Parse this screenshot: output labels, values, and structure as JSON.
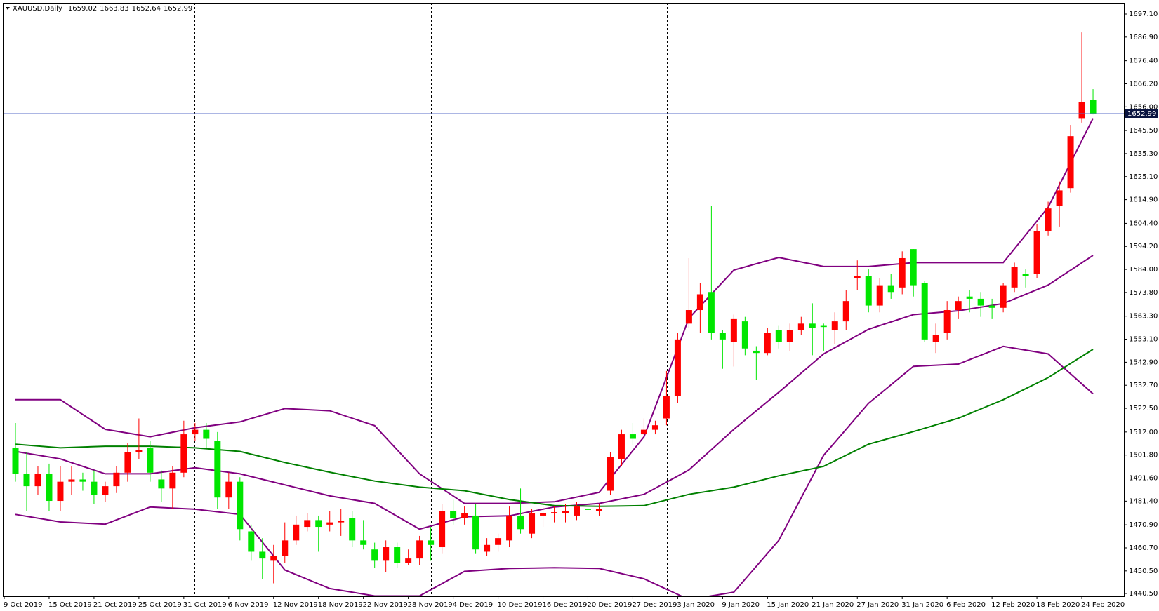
{
  "chart_data": {
    "type": "candlestick",
    "symbol": "XAUUSD,Daily",
    "categories": [
      "9 Oct 2019",
      null,
      null,
      null,
      "15 Oct 2019",
      null,
      null,
      null,
      "21 Oct 2019",
      null,
      null,
      null,
      "25 Oct 2019",
      null,
      null,
      null,
      "31 Oct 2019",
      null,
      null,
      null,
      "6 Nov 2019",
      null,
      null,
      null,
      "12 Nov 2019",
      null,
      null,
      null,
      "18 Nov 2019",
      null,
      null,
      null,
      "22 Nov 2019",
      null,
      null,
      null,
      "28 Nov 2019",
      null,
      null,
      null,
      "4 Dec 2019",
      null,
      null,
      null,
      "10 Dec 2019",
      null,
      null,
      null,
      "16 Dec 2019",
      null,
      null,
      null,
      "20 Dec 2019",
      null,
      null,
      null,
      "27 Dec 2019",
      null,
      null,
      null,
      "3 Jan 2020",
      null,
      null,
      null,
      "9 Jan 2020",
      null,
      null,
      null,
      "15 Jan 2020",
      null,
      null,
      null,
      "21 Jan 2020",
      null,
      null,
      null,
      "27 Jan 2020",
      null,
      null,
      null,
      "31 Jan 2020",
      null,
      null,
      null,
      "6 Feb 2020",
      null,
      null,
      null,
      "12 Feb 2020",
      null,
      null,
      null,
      "18 Feb 2020",
      null,
      null,
      null,
      "24 Feb 2020"
    ],
    "open": [
      1505,
      1493.5,
      1488,
      1493.5,
      1481.5,
      1490,
      1491,
      1490,
      1484,
      1488,
      1494,
      1503,
      1505,
      1491,
      1487,
      1494,
      1511,
      1513,
      1508,
      1483,
      1490,
      1468,
      1459,
      1455,
      1457,
      1464,
      1470,
      1473,
      1471,
      1472,
      1474,
      1464,
      1460,
      1455,
      1461,
      1454,
      1456,
      1464,
      1461,
      1477,
      1474,
      1475,
      1459,
      1462,
      1464,
      1475,
      1467,
      1475,
      1476,
      1476,
      1475,
      1478,
      1477,
      1486,
      1500,
      1511,
      1511,
      1513,
      1518,
      1528,
      1560,
      1566,
      1574,
      1556,
      1552,
      1561,
      1548,
      1547,
      1557,
      1552,
      1557,
      1560,
      1559,
      1557,
      1561,
      1580,
      1581,
      1568,
      1577,
      1576,
      1593,
      1578,
      1552,
      1556,
      1566,
      1572,
      1571,
      1568,
      1567,
      1576,
      1582,
      1582,
      1601,
      1612,
      1620,
      1651,
      1659.02
    ],
    "high": [
      1516,
      1503,
      1497,
      1498,
      1497,
      1497,
      1494,
      1495,
      1490,
      1497,
      1507,
      1518,
      1508,
      1495,
      1497,
      1517,
      1516,
      1516,
      1512,
      1494,
      1492,
      1471,
      1465,
      1462,
      1472,
      1475,
      1476,
      1475,
      1477,
      1478,
      1477,
      1473,
      1463,
      1464,
      1463,
      1460,
      1466,
      1470,
      1480,
      1482,
      1479,
      1480,
      1465,
      1467,
      1479,
      1487,
      1478,
      1479,
      1479,
      1480,
      1481,
      1481,
      1480,
      1503,
      1513,
      1516,
      1518,
      1517,
      1539,
      1556,
      1589,
      1578,
      1612,
      1557,
      1564,
      1563,
      1550,
      1558,
      1559,
      1560,
      1563,
      1569,
      1560,
      1565,
      1575,
      1588,
      1584,
      1580,
      1582,
      1592,
      1593,
      1579,
      1560,
      1570,
      1572,
      1575,
      1574,
      1571,
      1578,
      1587,
      1584,
      1604,
      1614,
      1623,
      1648,
      1689,
      1663.83
    ],
    "low": [
      1490,
      1477,
      1484,
      1477,
      1477,
      1484,
      1486,
      1480,
      1481,
      1485,
      1490,
      1500,
      1490,
      1481,
      1478,
      1492,
      1508,
      1505,
      1478,
      1478,
      1464,
      1455,
      1447,
      1445,
      1454,
      1462,
      1468,
      1459,
      1468,
      1466,
      1461,
      1460,
      1452,
      1450,
      1452,
      1453,
      1453,
      1455,
      1458,
      1471,
      1471,
      1458,
      1457,
      1459,
      1461,
      1467,
      1465,
      1470,
      1472,
      1472,
      1473,
      1474,
      1475,
      1484,
      1497,
      1506,
      1510,
      1511,
      1515,
      1525,
      1558,
      1556,
      1553,
      1540,
      1541,
      1546,
      1535,
      1546,
      1549,
      1548,
      1555,
      1546,
      1548,
      1551,
      1557,
      1575,
      1565,
      1565,
      1571,
      1573,
      1572,
      1552,
      1547,
      1553,
      1562,
      1565,
      1563,
      1562,
      1565,
      1574,
      1576,
      1580,
      1599,
      1603,
      1618,
      1649,
      1652.64
    ],
    "close": [
      1493.5,
      1488,
      1493.5,
      1481.5,
      1490,
      1491,
      1490,
      1484,
      1488,
      1494,
      1503,
      1504,
      1494,
      1487,
      1494,
      1511,
      1513,
      1509,
      1483,
      1490,
      1469,
      1459,
      1456,
      1457,
      1464,
      1471,
      1473,
      1470,
      1472,
      1472.5,
      1464,
      1462,
      1455,
      1461,
      1454,
      1456,
      1464,
      1462,
      1477,
      1474,
      1476,
      1460,
      1462,
      1465,
      1475,
      1469,
      1476,
      1476,
      1476.5,
      1477,
      1479,
      1477.5,
      1478,
      1501,
      1511,
      1509,
      1513,
      1515,
      1528,
      1553,
      1566,
      1573,
      1556,
      1553,
      1562,
      1549,
      1547,
      1556,
      1552,
      1557,
      1560,
      1558,
      1558.5,
      1561,
      1570,
      1581,
      1568,
      1577,
      1574,
      1589,
      1577,
      1553,
      1555,
      1566,
      1570,
      1571,
      1568,
      1567,
      1577,
      1585,
      1581,
      1601,
      1611,
      1619,
      1643,
      1658,
      1652.99
    ],
    "up_color": "#ff0000",
    "down_color": "#00e600",
    "lines": [
      {
        "color": "#800080",
        "values": [
          1526.3,
          1526.3,
          1513.2,
          1509.9,
          1513.9,
          1516.5,
          1522.4,
          1521.4,
          1514.8,
          1493.5,
          1480.4,
          1480.4,
          1481.1,
          1485.3,
          1509.9,
          1562.4,
          1583.7,
          1589.3,
          1585.3,
          1585.3,
          1587.0,
          1587.0,
          1587.0,
          1611.5,
          1650.9
        ]
      },
      {
        "color": "#800080",
        "values": [
          1503.4,
          1500.1,
          1493.5,
          1493.5,
          1496.2,
          1493.5,
          1488.6,
          1483.7,
          1480.4,
          1469.0,
          1474.5,
          1474.9,
          1478.8,
          1480.4,
          1484.4,
          1495.2,
          1513.2,
          1529.6,
          1546.6,
          1557.5,
          1564.0,
          1565.7,
          1568.9,
          1577.1,
          1590.2
        ]
      },
      {
        "color": "#800080",
        "values": [
          1475.5,
          1472.2,
          1471.2,
          1478.8,
          1477.8,
          1475.5,
          1450.9,
          1442.7,
          1439.4,
          1439.4,
          1450.3,
          1451.6,
          1451.9,
          1451.6,
          1447.0,
          1437.8,
          1441.1,
          1464.0,
          1501.7,
          1524.7,
          1541.1,
          1542.1,
          1549.9,
          1546.6,
          1528.9
        ]
      },
      {
        "color": "#008000",
        "values": [
          1506.6,
          1505.0,
          1505.7,
          1505.7,
          1505.0,
          1503.4,
          1498.5,
          1494.2,
          1490.3,
          1487.6,
          1486.0,
          1482.1,
          1479.4,
          1479.1,
          1479.4,
          1484.4,
          1487.6,
          1492.6,
          1496.8,
          1506.6,
          1512.2,
          1518.1,
          1526.3,
          1536.1,
          1548.6
        ]
      }
    ],
    "price_line_color": "#5a6ec8",
    "ylim": [
      1439.26,
      1702.07
    ],
    "yticks": [
      {
        "value": 1697.1,
        "label": "1697.10"
      },
      {
        "value": 1686.9,
        "label": "1686.90"
      },
      {
        "value": 1676.4,
        "label": "1676.40"
      },
      {
        "value": 1666.2,
        "label": "1666.20"
      },
      {
        "value": 1656.0,
        "label": "1656.00"
      },
      {
        "value": 1645.5,
        "label": "1645.50"
      },
      {
        "value": 1635.3,
        "label": "1635.30"
      },
      {
        "value": 1625.1,
        "label": "1625.10"
      },
      {
        "value": 1614.9,
        "label": "1614.90"
      },
      {
        "value": 1604.4,
        "label": "1604.40"
      },
      {
        "value": 1594.2,
        "label": "1594.20"
      },
      {
        "value": 1584.0,
        "label": "1584.00"
      },
      {
        "value": 1573.8,
        "label": "1573.80"
      },
      {
        "value": 1563.3,
        "label": "1563.30"
      },
      {
        "value": 1553.1,
        "label": "1553.10"
      },
      {
        "value": 1542.9,
        "label": "1542.90"
      },
      {
        "value": 1532.7,
        "label": "1532.70"
      },
      {
        "value": 1522.5,
        "label": "1522.50"
      },
      {
        "value": 1512.0,
        "label": "1512.00"
      },
      {
        "value": 1501.8,
        "label": "1501.80"
      },
      {
        "value": 1491.6,
        "label": "1491.60"
      },
      {
        "value": 1481.4,
        "label": "1481.40"
      },
      {
        "value": 1470.9,
        "label": "1470.90"
      },
      {
        "value": 1460.7,
        "label": "1460.70"
      },
      {
        "value": 1450.5,
        "label": "1450.50"
      },
      {
        "value": 1440.5,
        "label": "1440.50"
      }
    ]
  }
}
